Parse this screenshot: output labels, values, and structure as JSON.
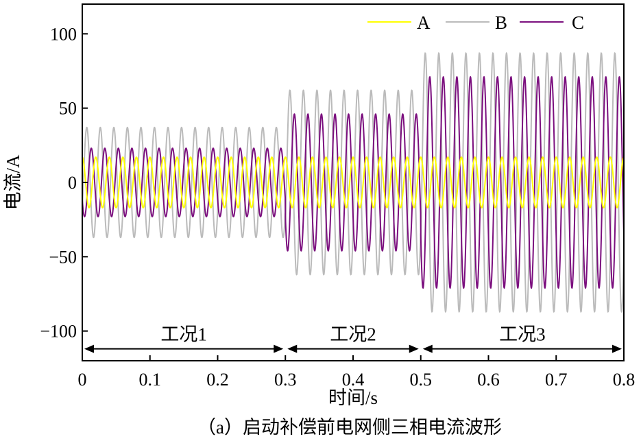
{
  "chart_data": {
    "type": "line",
    "title": "",
    "caption": "（a）启动补偿前电网侧三相电流波形",
    "xlabel": "时间/s",
    "ylabel": "电流/A",
    "xlim": [
      0,
      0.8
    ],
    "ylim": [
      -120,
      120
    ],
    "x_ticks": [
      0,
      0.1,
      0.2,
      0.3,
      0.4,
      0.5,
      0.6,
      0.7,
      0.8
    ],
    "x_tick_labels": [
      "0",
      "0.1",
      "0.2",
      "0.3",
      "0.4",
      "0.5",
      "0.6",
      "0.7",
      "0.8"
    ],
    "y_ticks": [
      -100,
      -50,
      0,
      50,
      100
    ],
    "y_tick_labels": [
      "−100",
      "−50",
      "0",
      "50",
      "100"
    ],
    "grid": false,
    "legend_position": "top-right",
    "frequency_hz": 50,
    "series": [
      {
        "name": "A",
        "color": "#ffff00",
        "amplitudes": [
          17,
          17,
          17
        ]
      },
      {
        "name": "B",
        "color": "#bbbbbb",
        "amplitudes": [
          37,
          62,
          87
        ]
      },
      {
        "name": "C",
        "color": "#7b0f7e",
        "amplitudes": [
          23,
          46,
          71
        ]
      }
    ],
    "regions": [
      {
        "label": "工况1",
        "start": 0.0,
        "end": 0.3
      },
      {
        "label": "工况2",
        "start": 0.3,
        "end": 0.5
      },
      {
        "label": "工况3",
        "start": 0.5,
        "end": 0.8
      }
    ],
    "region_arrow_y": -112
  }
}
